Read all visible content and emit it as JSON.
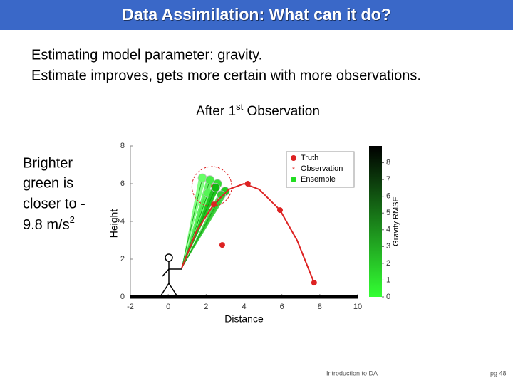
{
  "header": {
    "title": "Data Assimilation: What can it do?"
  },
  "body": {
    "lines": [
      "Estimating model parameter: gravity.",
      "Estimate improves, gets more certain with more observations."
    ],
    "caption": [
      "After 1",
      "st",
      " Observation"
    ],
    "side_note": [
      "Brighter",
      "green is",
      "closer to -",
      "9.8 m/s",
      "2"
    ]
  },
  "footer": {
    "left": "Introduction to DA",
    "right": "pg 48"
  },
  "chart_data": {
    "type": "scatter",
    "xlabel": "Distance",
    "ylabel": "Height",
    "xlim": [
      -2,
      10
    ],
    "xticks": [
      -2,
      0,
      2,
      4,
      6,
      8,
      10
    ],
    "ylim": [
      0,
      8
    ],
    "yticks": [
      0,
      2,
      4,
      6,
      8
    ],
    "truth_line": {
      "color": "#dd2222",
      "x": [
        0.7,
        1.5,
        2.4,
        3.2,
        4.0,
        4.8,
        5.9,
        6.8,
        7.7
      ],
      "y": [
        1.5,
        3.5,
        4.9,
        5.7,
        6.0,
        5.7,
        4.6,
        3.0,
        0.75
      ]
    },
    "series": [
      {
        "name": "Truth",
        "color": "#dd2222",
        "x": [
          2.4,
          2.85,
          4.2,
          5.9,
          7.7
        ],
        "values": [
          4.9,
          2.75,
          6.0,
          4.6,
          0.75
        ]
      },
      {
        "name": "Observation",
        "color": "#dd2222",
        "x": [
          2.3
        ],
        "values": [
          5.85
        ],
        "error": [
          1.05
        ]
      },
      {
        "name": "Ensemble",
        "color": "#22dd22",
        "start_x": 0.7,
        "start_y": 1.5,
        "x": [
          1.8,
          2.2,
          2.6,
          3.0,
          2.1,
          2.5,
          2.8
        ],
        "values": [
          6.3,
          6.2,
          6.0,
          5.6,
          5.5,
          5.8,
          5.4
        ],
        "colors": [
          "#66ff66",
          "#44ee44",
          "#33dd33",
          "#22cc22",
          "#55f555",
          "#11bb11",
          "#33cc33"
        ]
      }
    ],
    "colorbar": {
      "label": "Gravity RMSE",
      "lim": [
        0,
        9
      ],
      "ticks": [
        0,
        1,
        2,
        3,
        4,
        5,
        6,
        7,
        8
      ],
      "colors": [
        "#33ff33",
        "#000000"
      ]
    },
    "legend": "upper right"
  }
}
